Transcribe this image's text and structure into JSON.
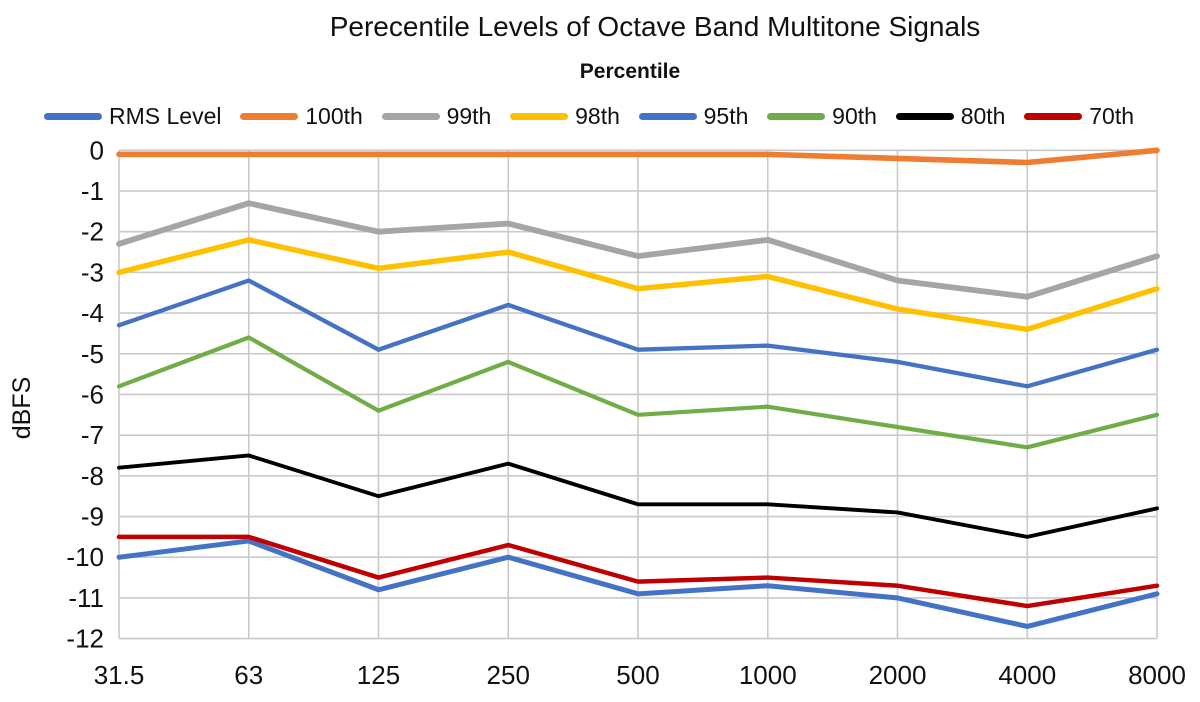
{
  "chart_data": {
    "type": "line",
    "title": "Perecentile Levels of Octave Band Multitone Signals",
    "legend_title": "Percentile",
    "legend_position": "top",
    "ylabel": "dBFS",
    "xlabel": "",
    "x_tick_labels": [
      "31.5",
      "63",
      "125",
      "250",
      "500",
      "1000",
      "2000",
      "4000",
      "8000"
    ],
    "y_ticks": [
      0,
      -1,
      -2,
      -3,
      -4,
      -5,
      -6,
      -7,
      -8,
      -9,
      -10,
      -11,
      -12
    ],
    "ylim": [
      -12,
      0
    ],
    "grid": "both",
    "gridline_color": "#c9c9c9",
    "text_color": "#111111",
    "series": [
      {
        "name": "RMS Level",
        "color": "#4472C4",
        "values": [
          -10.0,
          -9.6,
          -10.8,
          -10.0,
          -10.9,
          -10.7,
          -11.0,
          -11.7,
          -10.9
        ]
      },
      {
        "name": "100th",
        "color": "#ED7D31",
        "values": [
          -0.1,
          -0.1,
          -0.1,
          -0.1,
          -0.1,
          -0.1,
          -0.2,
          -0.3,
          0.0
        ]
      },
      {
        "name": "99th",
        "color": "#A5A5A5",
        "values": [
          -2.3,
          -1.3,
          -2.0,
          -1.8,
          -2.6,
          -2.2,
          -3.2,
          -3.6,
          -2.6
        ]
      },
      {
        "name": "98th",
        "color": "#FFC000",
        "values": [
          -3.0,
          -2.2,
          -2.9,
          -2.5,
          -3.4,
          -3.1,
          -3.9,
          -4.4,
          -3.4
        ]
      },
      {
        "name": "95th",
        "color": "#4472C4",
        "values": [
          -4.3,
          -3.2,
          -4.9,
          -3.8,
          -4.9,
          -4.8,
          -5.2,
          -5.8,
          -4.9
        ]
      },
      {
        "name": "90th",
        "color": "#70AD47",
        "values": [
          -5.8,
          -4.6,
          -6.4,
          -5.2,
          -6.5,
          -6.3,
          -6.8,
          -7.3,
          -6.5
        ]
      },
      {
        "name": "80th",
        "color": "#000000",
        "values": [
          -7.8,
          -7.5,
          -8.5,
          -7.7,
          -8.7,
          -8.7,
          -8.9,
          -9.5,
          -8.8
        ]
      },
      {
        "name": "70th",
        "color": "#C00000",
        "values": [
          -9.5,
          -9.5,
          -10.5,
          -9.7,
          -10.6,
          -10.5,
          -10.7,
          -11.2,
          -10.7
        ]
      }
    ]
  }
}
